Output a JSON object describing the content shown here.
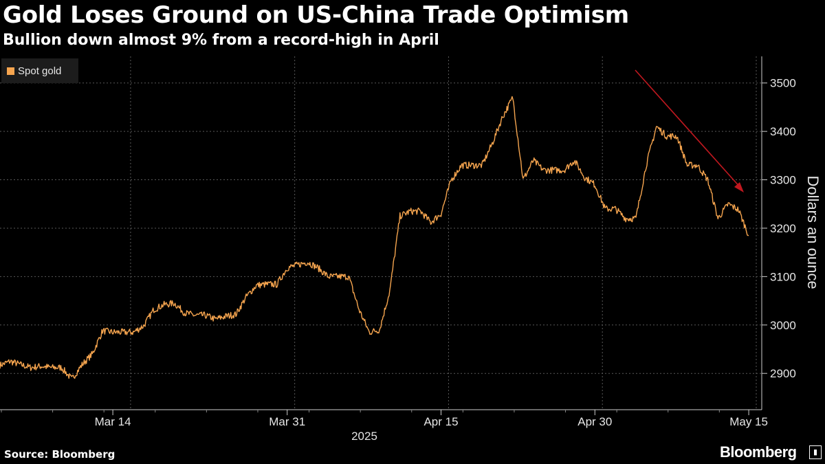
{
  "header": {
    "title": "Gold Loses Ground on US-China Trade Optimism",
    "subtitle": "Bullion down almost 9% from a record-high in April"
  },
  "footer": {
    "source": "Source: Bloomberg",
    "brand": "Bloomberg"
  },
  "colors": {
    "series": "#f6a54f",
    "annotation_arrow": "#c0181f",
    "grid": "#5a5a5a",
    "background": "#000000"
  },
  "chart_data": {
    "type": "line",
    "ylabel": "Dollars an ounce",
    "year_label": "2025",
    "ylim": [
      2825,
      3555
    ],
    "y_ticks": [
      2900,
      3000,
      3100,
      3200,
      3300,
      3400,
      3500
    ],
    "x_ticks": [
      "Mar 14",
      "Mar 31",
      "Apr 15",
      "Apr 30",
      "May 15"
    ],
    "legend_position": "top-left",
    "grid": true,
    "annotation": "downward arrow from early May peak",
    "series": [
      {
        "name": "Spot gold",
        "x": [
          "2025-03-03",
          "2025-03-04",
          "2025-03-05",
          "2025-03-06",
          "2025-03-07",
          "2025-03-08",
          "2025-03-09",
          "2025-03-10",
          "2025-03-11",
          "2025-03-12",
          "2025-03-13",
          "2025-03-14",
          "2025-03-15",
          "2025-03-16",
          "2025-03-17",
          "2025-03-18",
          "2025-03-19",
          "2025-03-20",
          "2025-03-21",
          "2025-03-22",
          "2025-03-23",
          "2025-03-24",
          "2025-03-25",
          "2025-03-26",
          "2025-03-27",
          "2025-03-28",
          "2025-03-29",
          "2025-03-30",
          "2025-03-31",
          "2025-04-01",
          "2025-04-02",
          "2025-04-03",
          "2025-04-04",
          "2025-04-05",
          "2025-04-06",
          "2025-04-07",
          "2025-04-08",
          "2025-04-09",
          "2025-04-10",
          "2025-04-11",
          "2025-04-12",
          "2025-04-13",
          "2025-04-14",
          "2025-04-15",
          "2025-04-16",
          "2025-04-17",
          "2025-04-18",
          "2025-04-19",
          "2025-04-20",
          "2025-04-21",
          "2025-04-22",
          "2025-04-23",
          "2025-04-24",
          "2025-04-25",
          "2025-04-26",
          "2025-04-27",
          "2025-04-28",
          "2025-04-29",
          "2025-04-30",
          "2025-05-01",
          "2025-05-02",
          "2025-05-03",
          "2025-05-04",
          "2025-05-05",
          "2025-05-06",
          "2025-05-07",
          "2025-05-08",
          "2025-05-09",
          "2025-05-10",
          "2025-05-11",
          "2025-05-12",
          "2025-05-13",
          "2025-05-14",
          "2025-05-15"
        ],
        "values": [
          2917,
          2925,
          2918,
          2912,
          2915,
          2912,
          2912,
          2888,
          2918,
          2940,
          2988,
          2985,
          2985,
          2985,
          2998,
          3032,
          3042,
          3045,
          3025,
          3020,
          3020,
          3012,
          3018,
          3022,
          3058,
          3082,
          3084,
          3084,
          3118,
          3124,
          3130,
          3118,
          3100,
          3100,
          3100,
          3032,
          2985,
          2990,
          3070,
          3225,
          3235,
          3235,
          3212,
          3230,
          3300,
          3330,
          3330,
          3330,
          3375,
          3430,
          3470,
          3300,
          3340,
          3320,
          3320,
          3320,
          3340,
          3305,
          3290,
          3240,
          3240,
          3220,
          3220,
          3330,
          3410,
          3390,
          3390,
          3330,
          3330,
          3300,
          3220,
          3250,
          3238,
          3185
        ]
      }
    ]
  }
}
